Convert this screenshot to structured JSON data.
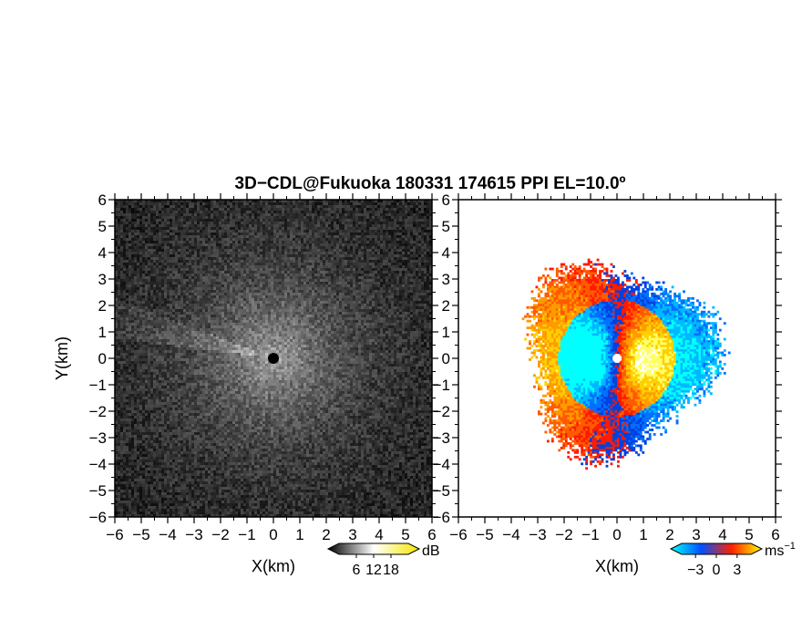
{
  "chart_data": [
    {
      "type": "heatmap",
      "title": "3D−CDL@Fukuoka 180331 174615 PPI EL=10.0º",
      "panel": "reflectivity",
      "xlabel": "X(km)",
      "ylabel": "Y(km)",
      "xlim": [
        -6,
        6
      ],
      "ylim": [
        -6,
        6
      ],
      "xticks": [
        "−6",
        "−5",
        "−4",
        "−3",
        "−2",
        "−1",
        "0",
        "1",
        "2",
        "3",
        "4",
        "5",
        "6"
      ],
      "yticks": [
        "6",
        "5",
        "4",
        "3",
        "2",
        "1",
        "0",
        "−1",
        "−2",
        "−3",
        "−4",
        "−5",
        "−6"
      ],
      "colorbar": {
        "unit": "dB",
        "ticks": [
          "6",
          "12",
          "18"
        ],
        "range": [
          0,
          24
        ],
        "colors": [
          "#000000",
          "#ffffff",
          "#f5e600"
        ]
      },
      "center_marker": [
        0,
        0
      ]
    },
    {
      "type": "heatmap",
      "panel": "doppler velocity",
      "xlabel": "X(km)",
      "xlim": [
        -6,
        6
      ],
      "ylim": [
        -6,
        6
      ],
      "xticks": [
        "−6",
        "−5",
        "−4",
        "−3",
        "−2",
        "−1",
        "0",
        "1",
        "2",
        "3",
        "4",
        "5",
        "6"
      ],
      "yticks": [
        "6",
        "5",
        "4",
        "3",
        "2",
        "1",
        "0",
        "−1",
        "−2",
        "−3",
        "−4",
        "−5",
        "−6"
      ],
      "colorbar": {
        "unit": "ms",
        "unit_sup": "−1",
        "ticks": [
          "−3",
          "0",
          "3"
        ],
        "range": [
          -5,
          5
        ],
        "colors": [
          "#00ffff",
          "#0050ff",
          "#ff2000",
          "#ffff00"
        ]
      }
    }
  ]
}
